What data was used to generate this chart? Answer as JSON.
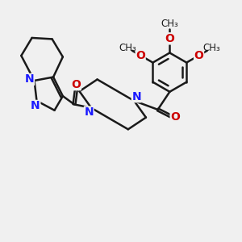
{
  "bg_color": "#f0f0f0",
  "bond_color": "#1a1a1a",
  "n_color": "#1a1aff",
  "o_color": "#cc0000",
  "bond_width": 1.8,
  "font_size_atom": 10,
  "font_size_small": 8.5,
  "methoxy_labels": [
    "O",
    "O",
    "O"
  ],
  "piperazine_N_labels": [
    "N",
    "N"
  ]
}
